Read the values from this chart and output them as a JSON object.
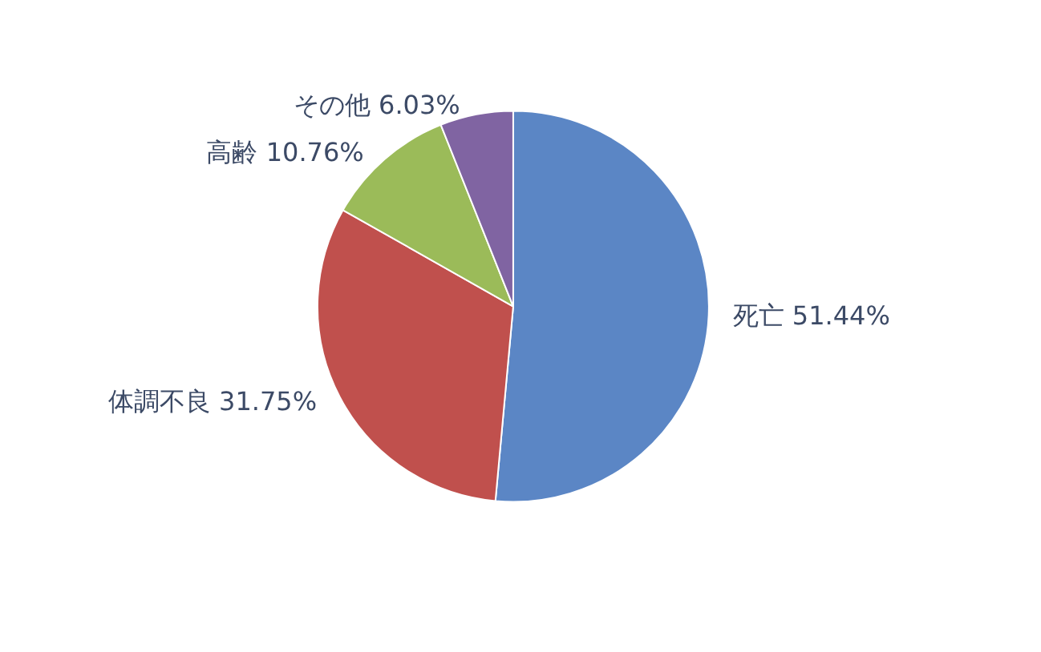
{
  "chart_data": {
    "type": "pie",
    "categories": [
      "死亡",
      "体調不良",
      "高齢",
      "その他"
    ],
    "values": [
      51.44,
      31.75,
      10.76,
      6.03
    ],
    "value_labels": [
      "51.44%",
      "31.75%",
      "10.76%",
      "6.03%"
    ],
    "colors": [
      "#5b86c5",
      "#c0504d",
      "#9bbb59",
      "#8064a2"
    ]
  }
}
